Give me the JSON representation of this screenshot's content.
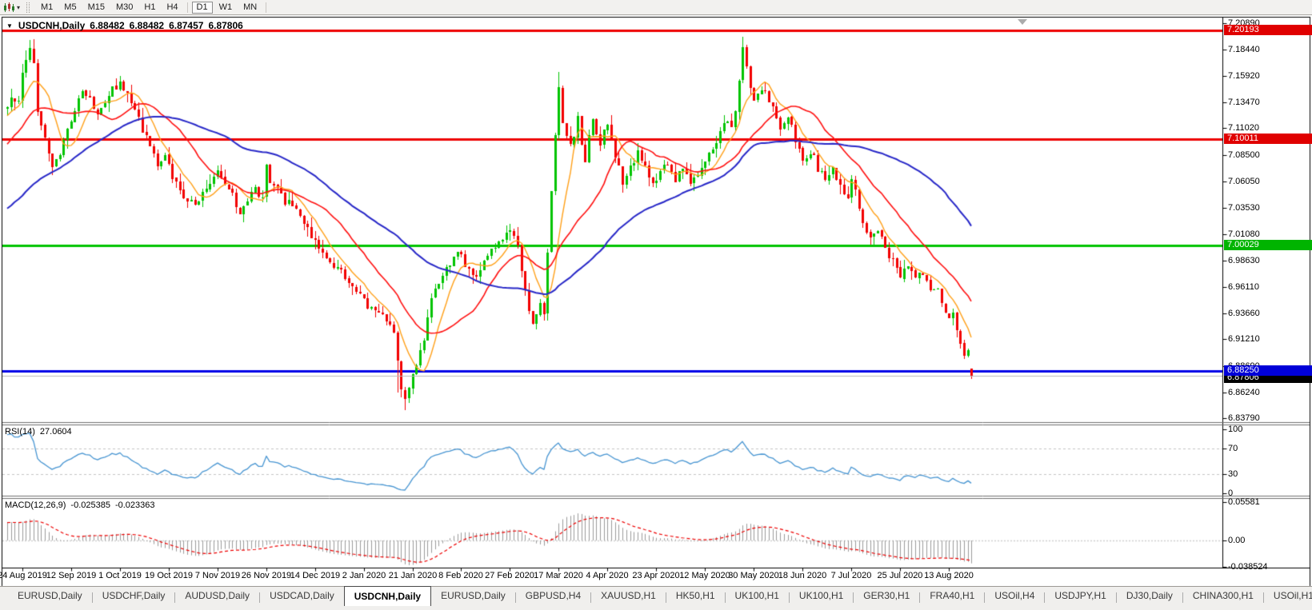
{
  "toolbar": {
    "timeframes": [
      "M1",
      "M5",
      "M15",
      "M30",
      "H1",
      "H4",
      "D1",
      "W1",
      "MN"
    ],
    "active_timeframe": "D1",
    "dropdown_caret": "▾"
  },
  "chart": {
    "title": {
      "triangle": "▼",
      "symbol": "USDCNH,Daily",
      "open": "6.88482",
      "high": "6.88482",
      "low": "6.87457",
      "close": "6.87806"
    },
    "price_axis": {
      "labels": [
        "7.20890",
        "7.18440",
        "7.15920",
        "7.13470",
        "7.11020",
        "7.08500",
        "7.06050",
        "7.03530",
        "7.01080",
        "6.98630",
        "6.96110",
        "6.93660",
        "6.91210",
        "6.88690",
        "6.86240",
        "6.83790"
      ]
    },
    "levels": [
      {
        "value": 7.20193,
        "label": "7.20193",
        "line_color": "#EE0000",
        "badge_bg": "#E00000",
        "line_width": 3,
        "type": "resistance"
      },
      {
        "value": 7.10011,
        "label": "7.10011",
        "line_color": "#EE0000",
        "badge_bg": "#E00000",
        "line_width": 3,
        "type": "resistance"
      },
      {
        "value": 7.00029,
        "label": "7.00029",
        "line_color": "#00C400",
        "badge_bg": "#00B400",
        "line_width": 3,
        "type": "support"
      },
      {
        "value": 6.87806,
        "label": "6.87806",
        "line_color": "#BBBBBB",
        "badge_bg": "#000000",
        "line_width": 1,
        "type": "current-price"
      },
      {
        "value": 6.8825,
        "label": "6.88250",
        "line_color": "#0000E8",
        "badge_bg": "#0000D8",
        "line_width": 3,
        "type": "support"
      }
    ],
    "date_axis": [
      "24 Aug 2019",
      "12 Sep 2019",
      "1 Oct 2019",
      "19 Oct 2019",
      "7 Nov 2019",
      "26 Nov 2019",
      "14 Dec 2019",
      "2 Jan 2020",
      "21 Jan 2020",
      "8 Feb 2020",
      "27 Feb 2020",
      "17 Mar 2020",
      "4 Apr 2020",
      "23 Apr 2020",
      "12 May 2020",
      "30 May 2020",
      "18 Jun 2020",
      "7 Jul 2020",
      "25 Jul 2020",
      "13 Aug 2020"
    ]
  },
  "indicators": {
    "rsi": {
      "label": "RSI(14)",
      "value": "27.0604",
      "scale": [
        "100",
        "70",
        "30",
        "0"
      ],
      "level_lines": [
        70,
        30
      ],
      "line_color": "#4795D2"
    },
    "macd": {
      "label": "MACD(12,26,9)",
      "main_value": "-0.025385",
      "signal_value": "-0.023363",
      "scale": [
        "0.05581",
        "0.00",
        "-0.038524"
      ],
      "histogram_color": "#9C9C9C",
      "signal_color": "#EE0000"
    }
  },
  "tabs": {
    "items": [
      "EURUSD,Daily",
      "USDCHF,Daily",
      "AUDUSD,Daily",
      "USDCAD,Daily",
      "USDCNH,Daily",
      "EURUSD,Daily",
      "GBPUSD,H4",
      "XAUUSD,H1",
      "HK50,H1",
      "UK100,H1",
      "UK100,H1",
      "GER30,H1",
      "FRA40,H1",
      "USOil,H4",
      "USDJPY,H1",
      "DJ30,Daily",
      "CHINA300,H1",
      "USOil,H1"
    ],
    "active_index": 4,
    "scroll_left": "◂",
    "scroll_right": "▸"
  },
  "chart_data": {
    "type": "candlestick",
    "symbol": "USDCNH",
    "timeframe": "Daily",
    "visible_date_range": [
      "24 Aug 2019",
      "21 Aug 2020"
    ],
    "visible_price_range": [
      6.8379,
      7.2089
    ],
    "n_candles": 258,
    "bars_per_date_tick": 13,
    "last_candle": {
      "open": 6.88482,
      "high": 6.88482,
      "low": 6.87457,
      "close": 6.87806
    },
    "candle_up_color": "#00C400",
    "candle_down_color": "#F20000",
    "horizontal_levels": [
      7.20193,
      7.10011,
      7.00029,
      6.8825
    ],
    "current_price": 6.87806,
    "moving_averages": [
      {
        "name": "ma-fast",
        "period": 8,
        "color": "#FFA018"
      },
      {
        "name": "ma-mid",
        "period": 21,
        "color": "#FF1010"
      },
      {
        "name": "ma-slow",
        "period": 55,
        "color": "#2828C8"
      }
    ],
    "rsi": {
      "period": 14,
      "current": 27.0604
    },
    "macd": {
      "fast": 12,
      "slow": 26,
      "signal": 9,
      "current_main": -0.025385,
      "current_signal": -0.023363
    },
    "close_anchors": [
      [
        -40,
        6.975
      ],
      [
        -30,
        7.012
      ],
      [
        -20,
        7.052
      ],
      [
        -10,
        7.098
      ],
      [
        -4,
        7.122
      ],
      [
        0,
        7.128
      ],
      [
        1,
        7.142
      ],
      [
        3,
        7.134
      ],
      [
        4,
        7.162
      ],
      [
        6,
        7.186
      ],
      [
        7,
        7.168
      ],
      [
        8,
        7.128
      ],
      [
        10,
        7.098
      ],
      [
        12,
        7.078
      ],
      [
        14,
        7.088
      ],
      [
        16,
        7.106
      ],
      [
        18,
        7.128
      ],
      [
        20,
        7.146
      ],
      [
        22,
        7.138
      ],
      [
        24,
        7.122
      ],
      [
        26,
        7.132
      ],
      [
        28,
        7.146
      ],
      [
        30,
        7.152
      ],
      [
        32,
        7.14
      ],
      [
        34,
        7.126
      ],
      [
        36,
        7.11
      ],
      [
        38,
        7.092
      ],
      [
        40,
        7.078
      ],
      [
        42,
        7.082
      ],
      [
        44,
        7.064
      ],
      [
        46,
        7.052
      ],
      [
        48,
        7.044
      ],
      [
        50,
        7.036
      ],
      [
        52,
        7.048
      ],
      [
        54,
        7.058
      ],
      [
        56,
        7.068
      ],
      [
        58,
        7.06
      ],
      [
        60,
        7.046
      ],
      [
        62,
        7.032
      ],
      [
        64,
        7.042
      ],
      [
        66,
        7.052
      ],
      [
        68,
        7.046
      ],
      [
        69,
        7.078
      ],
      [
        70,
        7.062
      ],
      [
        72,
        7.052
      ],
      [
        74,
        7.042
      ],
      [
        76,
        7.036
      ],
      [
        78,
        7.025
      ],
      [
        80,
        7.015
      ],
      [
        82,
        7.002
      ],
      [
        84,
        6.995
      ],
      [
        86,
        6.985
      ],
      [
        88,
        6.978
      ],
      [
        90,
        6.97
      ],
      [
        92,
        6.965
      ],
      [
        94,
        6.952
      ],
      [
        96,
        6.945
      ],
      [
        98,
        6.938
      ],
      [
        100,
        6.932
      ],
      [
        102,
        6.926
      ],
      [
        103,
        6.915
      ],
      [
        104,
        6.888
      ],
      [
        105,
        6.868
      ],
      [
        106,
        6.855
      ],
      [
        107,
        6.865
      ],
      [
        108,
        6.878
      ],
      [
        109,
        6.888
      ],
      [
        110,
        6.898
      ],
      [
        111,
        6.912
      ],
      [
        112,
        6.932
      ],
      [
        113,
        6.948
      ],
      [
        115,
        6.965
      ],
      [
        117,
        6.978
      ],
      [
        119,
        6.992
      ],
      [
        121,
        6.988
      ],
      [
        123,
        6.978
      ],
      [
        125,
        6.972
      ],
      [
        127,
        6.985
      ],
      [
        129,
        6.995
      ],
      [
        131,
        7.002
      ],
      [
        133,
        7.012
      ],
      [
        134,
        7.018
      ],
      [
        135,
        7.008
      ],
      [
        136,
        6.998
      ],
      [
        137,
        6.978
      ],
      [
        138,
        6.955
      ],
      [
        139,
        6.94
      ],
      [
        140,
        6.928
      ],
      [
        141,
        6.935
      ],
      [
        142,
        6.945
      ],
      [
        143,
        6.932
      ],
      [
        144,
        6.992
      ],
      [
        145,
        7.048
      ],
      [
        146,
        7.105
      ],
      [
        147,
        7.148
      ],
      [
        148,
        7.118
      ],
      [
        149,
        7.102
      ],
      [
        150,
        7.092
      ],
      [
        151,
        7.105
      ],
      [
        152,
        7.118
      ],
      [
        153,
        7.098
      ],
      [
        154,
        7.082
      ],
      [
        155,
        7.102
      ],
      [
        156,
        7.122
      ],
      [
        157,
        7.108
      ],
      [
        158,
        7.096
      ],
      [
        159,
        7.108
      ],
      [
        160,
        7.112
      ],
      [
        161,
        7.102
      ],
      [
        162,
        7.082
      ],
      [
        163,
        7.072
      ],
      [
        164,
        7.058
      ],
      [
        165,
        7.065
      ],
      [
        166,
        7.072
      ],
      [
        167,
        7.08
      ],
      [
        168,
        7.088
      ],
      [
        169,
        7.08
      ],
      [
        170,
        7.072
      ],
      [
        171,
        7.065
      ],
      [
        172,
        7.058
      ],
      [
        173,
        7.062
      ],
      [
        174,
        7.068
      ],
      [
        175,
        7.072
      ],
      [
        176,
        7.078
      ],
      [
        177,
        7.07
      ],
      [
        178,
        7.062
      ],
      [
        179,
        7.066
      ],
      [
        180,
        7.072
      ],
      [
        181,
        7.065
      ],
      [
        182,
        7.058
      ],
      [
        183,
        7.062
      ],
      [
        184,
        7.068
      ],
      [
        185,
        7.075
      ],
      [
        186,
        7.082
      ],
      [
        187,
        7.088
      ],
      [
        188,
        7.092
      ],
      [
        189,
        7.098
      ],
      [
        190,
        7.105
      ],
      [
        191,
        7.112
      ],
      [
        192,
        7.118
      ],
      [
        193,
        7.108
      ],
      [
        194,
        7.125
      ],
      [
        195,
        7.152
      ],
      [
        196,
        7.188
      ],
      [
        197,
        7.172
      ],
      [
        198,
        7.152
      ],
      [
        199,
        7.138
      ],
      [
        200,
        7.142
      ],
      [
        201,
        7.148
      ],
      [
        202,
        7.142
      ],
      [
        203,
        7.135
      ],
      [
        204,
        7.128
      ],
      [
        205,
        7.118
      ],
      [
        206,
        7.112
      ],
      [
        207,
        7.118
      ],
      [
        208,
        7.122
      ],
      [
        209,
        7.112
      ],
      [
        210,
        7.098
      ],
      [
        211,
        7.088
      ],
      [
        212,
        7.078
      ],
      [
        213,
        7.085
      ],
      [
        214,
        7.09
      ],
      [
        215,
        7.082
      ],
      [
        216,
        7.072
      ],
      [
        217,
        7.066
      ],
      [
        218,
        7.062
      ],
      [
        219,
        7.068
      ],
      [
        220,
        7.072
      ],
      [
        221,
        7.065
      ],
      [
        222,
        7.058
      ],
      [
        223,
        7.052
      ],
      [
        224,
        7.048
      ],
      [
        225,
        7.06
      ],
      [
        226,
        7.052
      ],
      [
        227,
        7.038
      ],
      [
        228,
        7.022
      ],
      [
        229,
        7.012
      ],
      [
        230,
        7.005
      ],
      [
        231,
        7.008
      ],
      [
        232,
        7.012
      ],
      [
        233,
        7.005
      ],
      [
        234,
        6.998
      ],
      [
        235,
        6.992
      ],
      [
        236,
        6.988
      ],
      [
        237,
        6.98
      ],
      [
        238,
        6.972
      ],
      [
        239,
        6.976
      ],
      [
        240,
        6.982
      ],
      [
        241,
        6.975
      ],
      [
        242,
        6.968
      ],
      [
        243,
        6.972
      ],
      [
        244,
        6.976
      ],
      [
        245,
        6.966
      ],
      [
        246,
        6.958
      ],
      [
        247,
        6.96
      ],
      [
        248,
        6.962
      ],
      [
        249,
        6.948
      ],
      [
        250,
        6.935
      ],
      [
        251,
        6.928
      ],
      [
        252,
        6.938
      ],
      [
        253,
        6.922
      ],
      [
        254,
        6.905
      ],
      [
        255,
        6.898
      ],
      [
        256,
        6.902
      ],
      [
        257,
        6.878
      ]
    ],
    "wick_overrides": [
      {
        "i": 6,
        "high": 7.1935
      },
      {
        "i": 104,
        "low": 6.862
      },
      {
        "i": 106,
        "low": 6.8455
      },
      {
        "i": 147,
        "high": 7.163
      },
      {
        "i": 196,
        "high": 7.196
      }
    ]
  }
}
